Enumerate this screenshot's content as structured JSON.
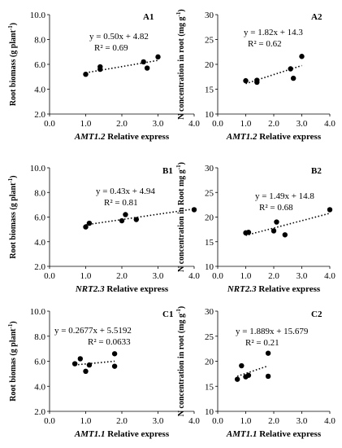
{
  "figure": {
    "chart_data": [
      {
        "type": "scatter",
        "panel_label": "A1",
        "xlabel_gene": "AMT1.2",
        "xlabel_rest": " Relative  express",
        "ylabel": "Root biomass (g plant",
        "ylabel_sup": "-1",
        "ylabel_end": ")",
        "xlim": [
          0,
          4
        ],
        "ylim": [
          2,
          10
        ],
        "x_ticks": [
          "0.0",
          "1.0",
          "2.0",
          "3.0",
          "4.0"
        ],
        "y_ticks": [
          "2.0",
          "4.0",
          "6.0",
          "8.0",
          "10.0"
        ],
        "equation": "y = 0.50x + 4.82",
        "r2": "R² = 0.69",
        "trend": {
          "slope": 0.5,
          "intercept": 4.82
        },
        "points": [
          {
            "x": 1.0,
            "y": 5.2
          },
          {
            "x": 1.4,
            "y": 5.6
          },
          {
            "x": 1.4,
            "y": 5.8
          },
          {
            "x": 2.6,
            "y": 6.2
          },
          {
            "x": 2.7,
            "y": 5.7
          },
          {
            "x": 3.0,
            "y": 6.6
          }
        ]
      },
      {
        "type": "scatter",
        "panel_label": "A2",
        "xlabel_gene": "AMT1.2",
        "xlabel_rest": " Relative  express",
        "ylabel": "N concentration in root  (mg g",
        "ylabel_sup": "-1",
        "ylabel_end": ")",
        "xlim": [
          0,
          4
        ],
        "ylim": [
          10,
          30
        ],
        "x_ticks": [
          "0.0",
          "1.0",
          "2.0",
          "3.0",
          "4.0"
        ],
        "y_ticks": [
          "10",
          "15",
          "20",
          "25",
          "30"
        ],
        "equation": "y = 1.82x + 14.3",
        "r2": "R² = 0.62",
        "trend": {
          "slope": 1.82,
          "intercept": 14.3
        },
        "points": [
          {
            "x": 1.0,
            "y": 16.7
          },
          {
            "x": 1.4,
            "y": 16.8
          },
          {
            "x": 1.4,
            "y": 16.4
          },
          {
            "x": 2.6,
            "y": 19.1
          },
          {
            "x": 2.7,
            "y": 17.2
          },
          {
            "x": 3.0,
            "y": 21.6
          }
        ]
      },
      {
        "type": "scatter",
        "panel_label": "B1",
        "xlabel_gene": "NRT2.3",
        "xlabel_rest": " Relative express",
        "ylabel": "Root biomass (g plant",
        "ylabel_sup": "-1",
        "ylabel_end": ")",
        "xlim": [
          0,
          4
        ],
        "ylim": [
          2,
          10
        ],
        "x_ticks": [
          "0.0",
          "1.0",
          "2.0",
          "3.0",
          "4.0"
        ],
        "y_ticks": [
          "2.0",
          "4.0",
          "6.0",
          "8.0",
          "10.0"
        ],
        "equation": "y = 0.43x + 4.94",
        "r2": "R² = 0.81",
        "trend": {
          "slope": 0.43,
          "intercept": 4.94
        },
        "points": [
          {
            "x": 1.0,
            "y": 5.2
          },
          {
            "x": 1.1,
            "y": 5.5
          },
          {
            "x": 2.0,
            "y": 5.7
          },
          {
            "x": 2.1,
            "y": 6.2
          },
          {
            "x": 2.4,
            "y": 5.8
          },
          {
            "x": 4.0,
            "y": 6.6
          }
        ]
      },
      {
        "type": "scatter",
        "panel_label": "B2",
        "xlabel_gene": "NRT2.3",
        "xlabel_rest": " Relative express",
        "ylabel": "N concentration in Root mg g",
        "ylabel_sup": "-1",
        "ylabel_end": ")",
        "xlim": [
          0,
          4
        ],
        "ylim": [
          10,
          30
        ],
        "x_ticks": [
          "0.0",
          "1.0",
          "2.0",
          "3.0",
          "4.0"
        ],
        "y_ticks": [
          "10",
          "15",
          "20",
          "25",
          "30"
        ],
        "equation": "y = 1.49x + 14.8",
        "r2": "R² = 0.68",
        "trend": {
          "slope": 1.49,
          "intercept": 14.8
        },
        "points": [
          {
            "x": 1.0,
            "y": 16.8
          },
          {
            "x": 1.1,
            "y": 16.9
          },
          {
            "x": 2.0,
            "y": 17.2
          },
          {
            "x": 2.1,
            "y": 19.0
          },
          {
            "x": 2.4,
            "y": 16.4
          },
          {
            "x": 4.0,
            "y": 21.5
          }
        ]
      },
      {
        "type": "scatter",
        "panel_label": "C1",
        "xlabel_gene": "AMT1.1",
        "xlabel_rest": " Relative  express",
        "ylabel": "Root biomas (g plant",
        "ylabel_sup": "-1",
        "ylabel_end": ")",
        "xlim": [
          0,
          4
        ],
        "ylim": [
          2,
          10
        ],
        "x_ticks": [
          "0.0",
          "1.0",
          "2.0",
          "3.0",
          "4.0"
        ],
        "y_ticks": [
          "2.0",
          "4.0",
          "6.0",
          "8.0",
          "10.0"
        ],
        "equation": "y = 0.2677x + 5.5192",
        "r2": "R² = 0.0633",
        "trend": {
          "slope": 0.2677,
          "intercept": 5.5192
        },
        "points": [
          {
            "x": 0.7,
            "y": 5.8
          },
          {
            "x": 0.85,
            "y": 6.2
          },
          {
            "x": 1.0,
            "y": 5.2
          },
          {
            "x": 1.1,
            "y": 5.7
          },
          {
            "x": 1.8,
            "y": 6.6
          },
          {
            "x": 1.8,
            "y": 5.6
          }
        ]
      },
      {
        "type": "scatter",
        "panel_label": "C2",
        "xlabel_gene": "AMT1.1",
        "xlabel_rest": " Relative  express",
        "ylabel": "N concentration in root  (mg g",
        "ylabel_sup": "-1",
        "ylabel_end": ")",
        "xlim": [
          0,
          4
        ],
        "ylim": [
          10,
          30
        ],
        "x_ticks": [
          "0.0",
          "1.0",
          "2.0",
          "3.0",
          "4.0"
        ],
        "y_ticks": [
          "10",
          "15",
          "20",
          "25",
          "30"
        ],
        "equation": "y = 1.889x + 15.679",
        "r2": "R² = 0.21",
        "trend": {
          "slope": 1.889,
          "intercept": 15.679
        },
        "points": [
          {
            "x": 0.7,
            "y": 16.4
          },
          {
            "x": 0.85,
            "y": 19.1
          },
          {
            "x": 1.0,
            "y": 16.9
          },
          {
            "x": 1.1,
            "y": 17.2
          },
          {
            "x": 1.8,
            "y": 21.6
          },
          {
            "x": 1.8,
            "y": 17.0
          }
        ]
      }
    ]
  }
}
